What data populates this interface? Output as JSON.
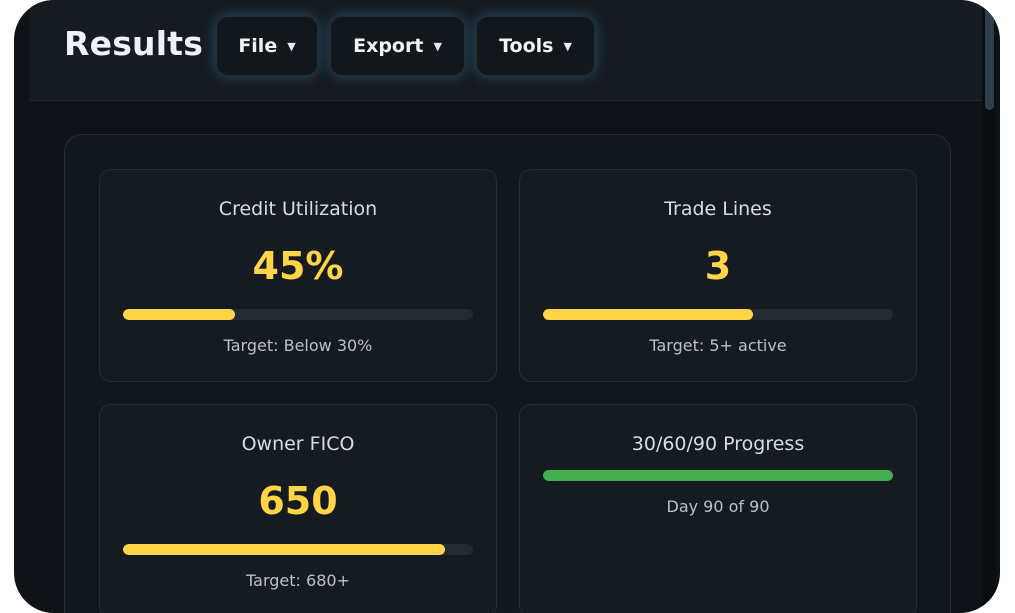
{
  "header": {
    "title": "Results",
    "menus": [
      {
        "label": "File",
        "icon": "caret-down-icon"
      },
      {
        "label": "Export",
        "icon": "caret-down-icon"
      },
      {
        "label": "Tools",
        "icon": "caret-down-icon"
      }
    ]
  },
  "cards": [
    {
      "title": "Credit Utilization",
      "value": "45%",
      "progress": 0.32,
      "note": "Target: Below 30%",
      "bar_color": "#ffd447"
    },
    {
      "title": "Trade Lines",
      "value": "3",
      "progress": 0.6,
      "note": "Target: 5+ active",
      "bar_color": "#ffd447"
    },
    {
      "title": "Owner FICO",
      "value": "650",
      "progress": 0.92,
      "note": "Target: 680+",
      "bar_color": "#ffd447"
    },
    {
      "title": "30/60/90 Progress",
      "progress": 1.0,
      "note": "Day 90 of 90",
      "bar_color": "#44b04d"
    }
  ],
  "colors": {
    "accent_yellow": "#ffd447",
    "accent_green": "#44b04d",
    "background": "#0f1317"
  }
}
